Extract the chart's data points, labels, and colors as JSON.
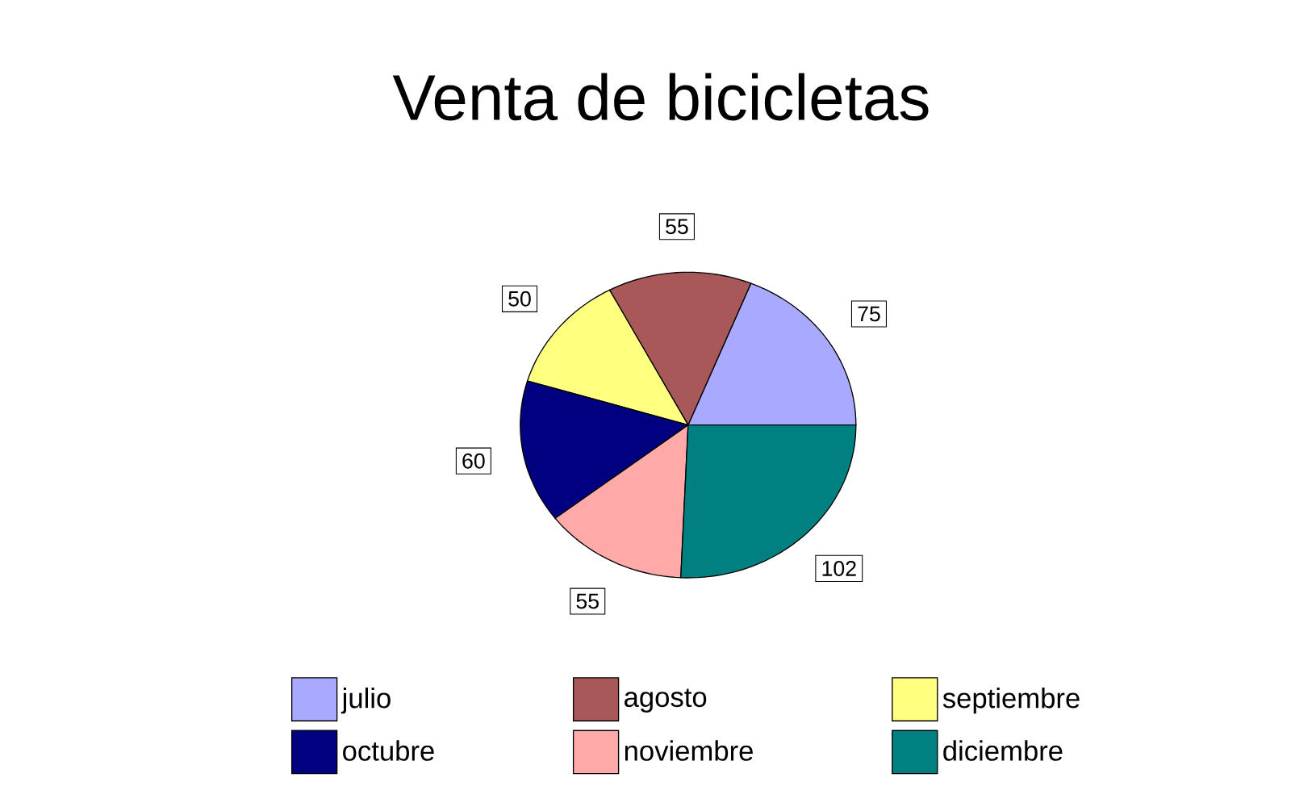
{
  "chart_data": {
    "type": "pie",
    "title": "Venta de bicicletas",
    "categories": [
      "julio",
      "agosto",
      "septiembre",
      "octubre",
      "noviembre",
      "diciembre"
    ],
    "values": [
      75,
      55,
      50,
      60,
      55,
      102
    ],
    "colors": [
      "#a9a9ff",
      "#a85858",
      "#ffff80",
      "#000080",
      "#ffa9a9",
      "#008080"
    ],
    "data_labels": true,
    "legend": "bottom"
  }
}
